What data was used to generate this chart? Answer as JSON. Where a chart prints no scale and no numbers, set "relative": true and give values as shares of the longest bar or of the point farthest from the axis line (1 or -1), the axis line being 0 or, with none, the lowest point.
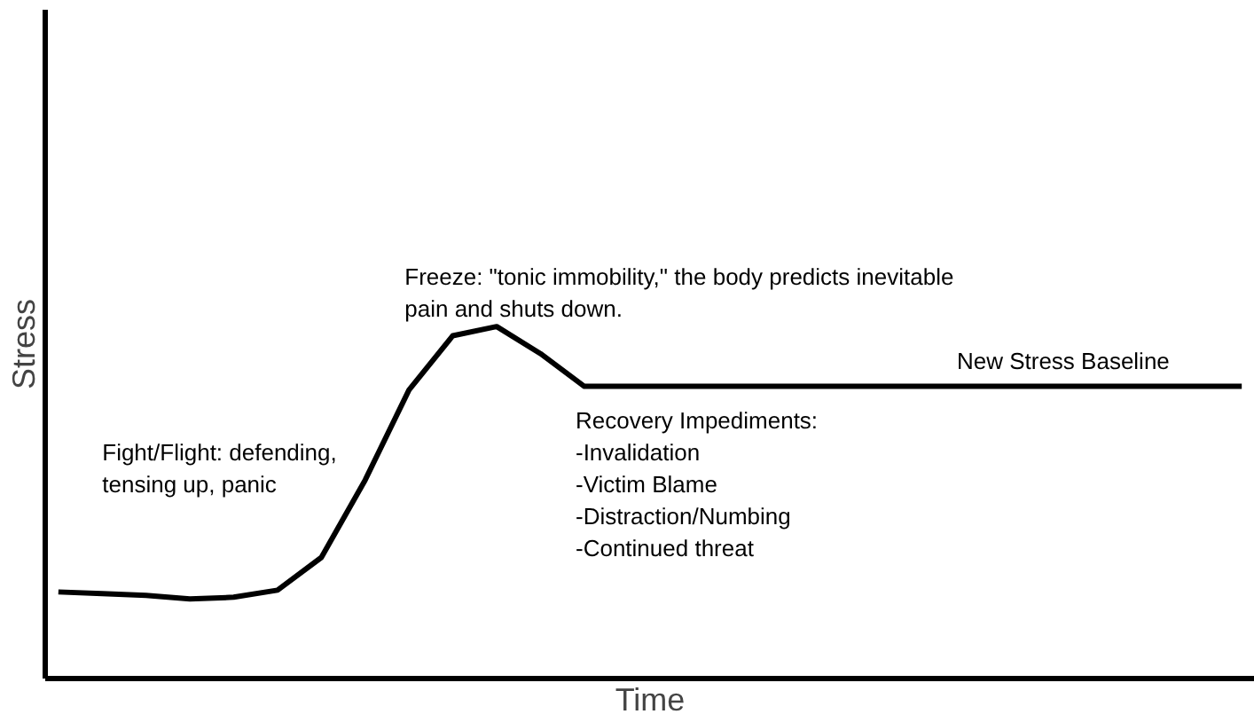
{
  "chart_data": {
    "type": "line",
    "relative": true,
    "xlabel": "Time",
    "ylabel": "Stress",
    "marker": "none",
    "line_style": "solid",
    "categories": [
      null,
      null,
      null,
      null,
      null,
      null,
      null,
      null,
      null,
      null,
      null,
      null,
      null,
      null,
      null,
      null,
      null,
      null,
      null,
      null,
      null,
      null,
      null,
      null,
      null,
      null,
      null,
      null
    ],
    "series": [
      {
        "color": "#000000",
        "values": [
          0.246,
          0.241,
          0.236,
          0.226,
          0.231,
          0.251,
          0.344,
          0.564,
          0.82,
          0.974,
          1,
          0.923,
          0.83,
          0.83,
          0.83,
          0.83,
          0.83,
          0.83,
          0.83,
          0.83,
          0.83,
          0.83,
          0.83,
          0.83,
          0.83,
          0.83,
          0.83,
          0.83
        ]
      }
    ],
    "annotations": [
      "Freeze: \"tonic immobility,\" the body predicts inevitable\npain and shuts down.",
      "Fight/Flight: defending,\ntensing up, panic",
      "Recovery Impediments:\n-Invalidation\n-Victim Blame\n-Distraction/Numbing\n-Continued threat",
      "New Stress Baseline"
    ]
  }
}
